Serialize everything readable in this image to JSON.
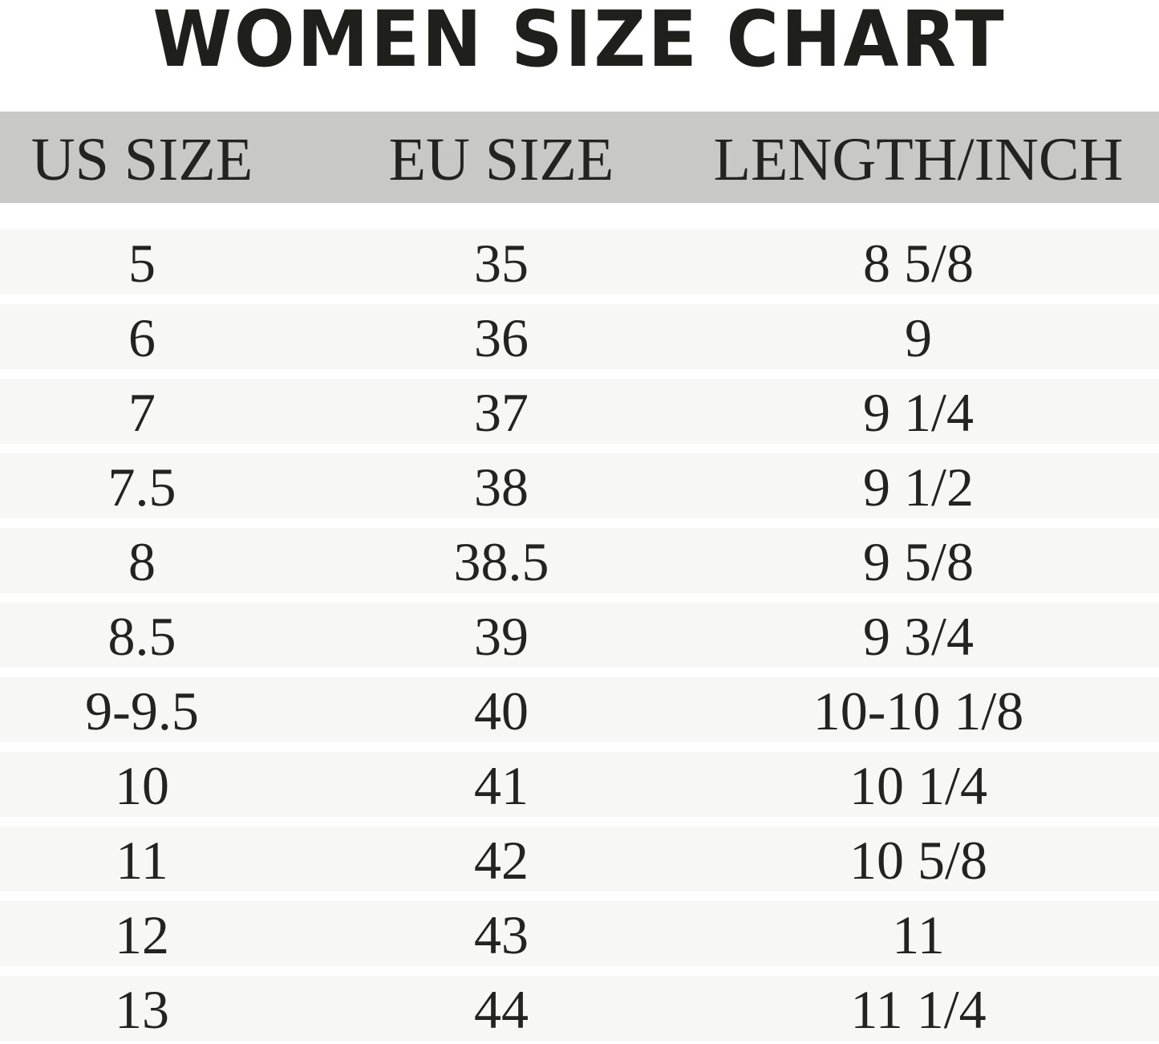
{
  "chart_data": {
    "type": "table",
    "title": "WOMEN SIZE CHART",
    "columns": [
      "US SIZE",
      "EU SIZE",
      "LENGTH/INCH"
    ],
    "rows": [
      [
        "5",
        "35",
        "8 5/8"
      ],
      [
        "6",
        "36",
        "9"
      ],
      [
        "7",
        "37",
        "9 1/4"
      ],
      [
        "7.5",
        "38",
        "9 1/2"
      ],
      [
        "8",
        "38.5",
        "9 5/8"
      ],
      [
        "8.5",
        "39",
        "9 3/4"
      ],
      [
        "9-9.5",
        "40",
        "10-10 1/8"
      ],
      [
        "10",
        "41",
        "10 1/4"
      ],
      [
        "11",
        "42",
        "10 5/8"
      ],
      [
        "12",
        "43",
        "11"
      ],
      [
        "13",
        "44",
        "11 1/4"
      ]
    ],
    "colors": {
      "header_bg": "#c8c8c5",
      "row_bg": "#f7f7f5",
      "text": "#23241f"
    }
  }
}
